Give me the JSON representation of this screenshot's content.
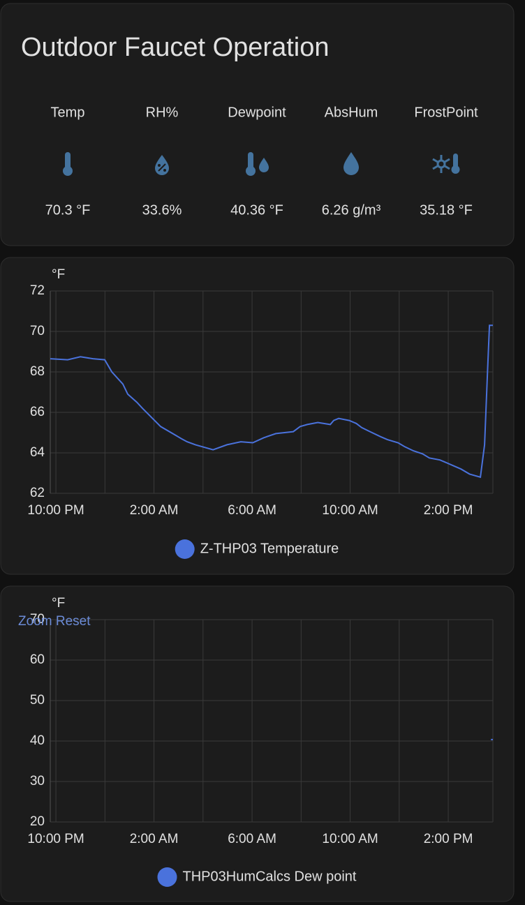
{
  "card": {
    "title": "Outdoor Faucet Operation",
    "entities": [
      {
        "name": "Temp",
        "value": "70.3 °F"
      },
      {
        "name": "RH%",
        "value": "33.6%"
      },
      {
        "name": "Dewpoint",
        "value": "40.36 °F"
      },
      {
        "name": "AbsHum",
        "value": "6.26 g/m³"
      },
      {
        "name": "FrostPoint",
        "value": "35.18 °F"
      }
    ]
  },
  "chart_data": [
    {
      "type": "line",
      "ylabel": "°F",
      "grid": true,
      "xlim": [
        21.77,
        39.82
      ],
      "ylim": [
        62,
        72
      ],
      "yticks": [
        62,
        64,
        66,
        68,
        70,
        72
      ],
      "xticks": [
        {
          "value": 22,
          "label": "10:00 PM"
        },
        {
          "value": 24,
          "label": null
        },
        {
          "value": 26,
          "label": "2:00 AM"
        },
        {
          "value": 28,
          "label": null
        },
        {
          "value": 30,
          "label": "6:00 AM"
        },
        {
          "value": 32,
          "label": null
        },
        {
          "value": 34,
          "label": "10:00 AM"
        },
        {
          "value": 36,
          "label": null
        },
        {
          "value": 38,
          "label": "2:00 PM"
        }
      ],
      "x": [
        21.77,
        22.48,
        23.0,
        23.51,
        23.99,
        24.28,
        24.73,
        24.93,
        25.3,
        25.53,
        26.27,
        27.12,
        27.35,
        27.69,
        28.41,
        28.98,
        29.54,
        30.03,
        30.48,
        30.97,
        31.68,
        31.96,
        32.25,
        32.68,
        33.19,
        33.33,
        33.53,
        33.96,
        34.25,
        34.47,
        34.81,
        35.24,
        35.52,
        35.95,
        36.23,
        36.58,
        36.95,
        37.23,
        37.66,
        37.95,
        38.23,
        38.52,
        38.87,
        39.31,
        39.48,
        39.6,
        39.68,
        39.82
      ],
      "series": [
        {
          "name": "Z-THP03 Temperature",
          "color": "#4a72dc",
          "values": [
            68.65,
            68.6,
            68.75,
            68.65,
            68.6,
            68.0,
            67.4,
            66.9,
            66.5,
            66.2,
            65.3,
            64.7,
            64.55,
            64.4,
            64.15,
            64.4,
            64.55,
            64.5,
            64.75,
            64.95,
            65.05,
            65.3,
            65.4,
            65.5,
            65.4,
            65.6,
            65.7,
            65.6,
            65.45,
            65.25,
            65.05,
            64.8,
            64.65,
            64.5,
            64.3,
            64.1,
            63.95,
            63.75,
            63.65,
            63.5,
            63.35,
            63.2,
            62.95,
            62.8,
            64.4,
            68.0,
            70.3,
            70.3
          ]
        }
      ]
    },
    {
      "type": "line",
      "ylabel": "°F",
      "grid": true,
      "zoom_reset": "Zoom Reset",
      "xlim": [
        21.77,
        39.82
      ],
      "ylim": [
        20,
        70
      ],
      "yticks": [
        20,
        30,
        40,
        50,
        60,
        70
      ],
      "xticks": [
        {
          "value": 22,
          "label": "10:00 PM"
        },
        {
          "value": 24,
          "label": null
        },
        {
          "value": 26,
          "label": "2:00 AM"
        },
        {
          "value": 28,
          "label": null
        },
        {
          "value": 30,
          "label": "6:00 AM"
        },
        {
          "value": 32,
          "label": null
        },
        {
          "value": 34,
          "label": "10:00 AM"
        },
        {
          "value": 36,
          "label": null
        },
        {
          "value": 38,
          "label": "2:00 PM"
        }
      ],
      "x": [
        39.74,
        39.82
      ],
      "series": [
        {
          "name": "THP03HumCalcs Dew point",
          "color": "#4a72dc",
          "values": [
            40.36,
            40.36
          ]
        }
      ]
    }
  ]
}
